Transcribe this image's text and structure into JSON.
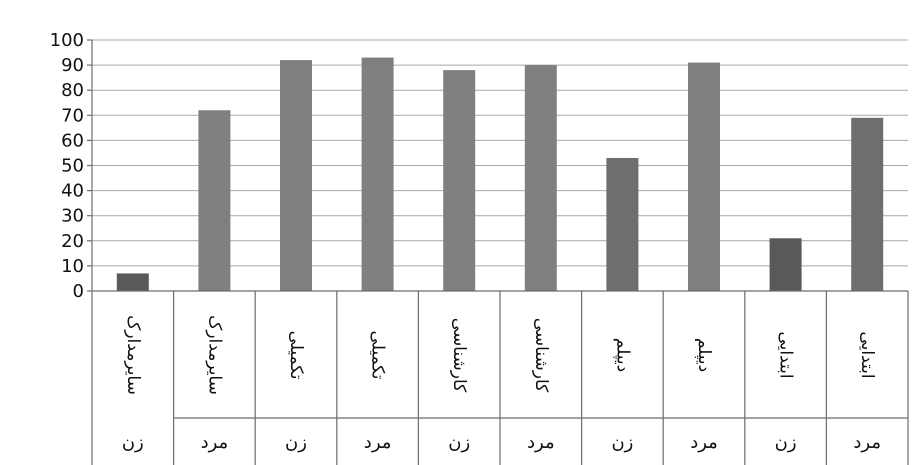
{
  "chart_data": {
    "type": "bar",
    "categories": [
      {
        "label": "سایرمدارک",
        "group": "زن"
      },
      {
        "label": "سایرمدارک",
        "group": "مرد"
      },
      {
        "label": "تکمیلی",
        "group": "زن"
      },
      {
        "label": "تکمیلی",
        "group": "مرد"
      },
      {
        "label": "کارشناسی",
        "group": "زن"
      },
      {
        "label": "کارشناسی",
        "group": "مرد"
      },
      {
        "label": "دیپلم",
        "group": "زن"
      },
      {
        "label": "دیپلم",
        "group": "مرد"
      },
      {
        "label": "ابتدایی",
        "group": "زن"
      },
      {
        "label": "ابتدایی",
        "group": "مرد"
      }
    ],
    "values": [
      7,
      72,
      92,
      93,
      88,
      90,
      53,
      91,
      21,
      69
    ],
    "ylim": [
      0,
      100
    ],
    "yticks": [
      0,
      10,
      20,
      30,
      40,
      50,
      60,
      70,
      80,
      90,
      100
    ],
    "grid": true,
    "bar_colors": [
      "#595959",
      "#7f7f7f",
      "#7f7f7f",
      "#7f7f7f",
      "#7f7f7f",
      "#7f7f7f",
      "#6e6e6e",
      "#7f7f7f",
      "#595959",
      "#6e6e6e"
    ]
  }
}
